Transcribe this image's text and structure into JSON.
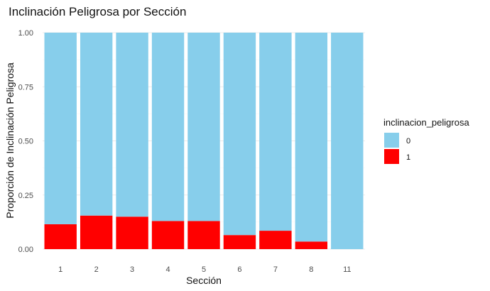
{
  "chart_data": {
    "type": "bar",
    "stacked": true,
    "title": "Inclinación Peligrosa por Sección",
    "xlabel": "Sección",
    "ylabel": "Proporción de Inclinación Peligrosa",
    "categories": [
      "1",
      "2",
      "3",
      "4",
      "5",
      "6",
      "7",
      "8",
      "11"
    ],
    "ylim": [
      0,
      1
    ],
    "yticks": [
      "0.00",
      "0.25",
      "0.50",
      "0.75",
      "1.00"
    ],
    "grid": true,
    "legend": {
      "title": "inclinacion_peligrosa",
      "position": "right"
    },
    "series": [
      {
        "name": "0",
        "color": "#87CEEB",
        "values": [
          0.885,
          0.845,
          0.85,
          0.87,
          0.87,
          0.935,
          0.915,
          0.965,
          1.0
        ]
      },
      {
        "name": "1",
        "color": "#FF0000",
        "values": [
          0.115,
          0.155,
          0.15,
          0.13,
          0.13,
          0.065,
          0.085,
          0.035,
          0.0
        ]
      }
    ]
  }
}
